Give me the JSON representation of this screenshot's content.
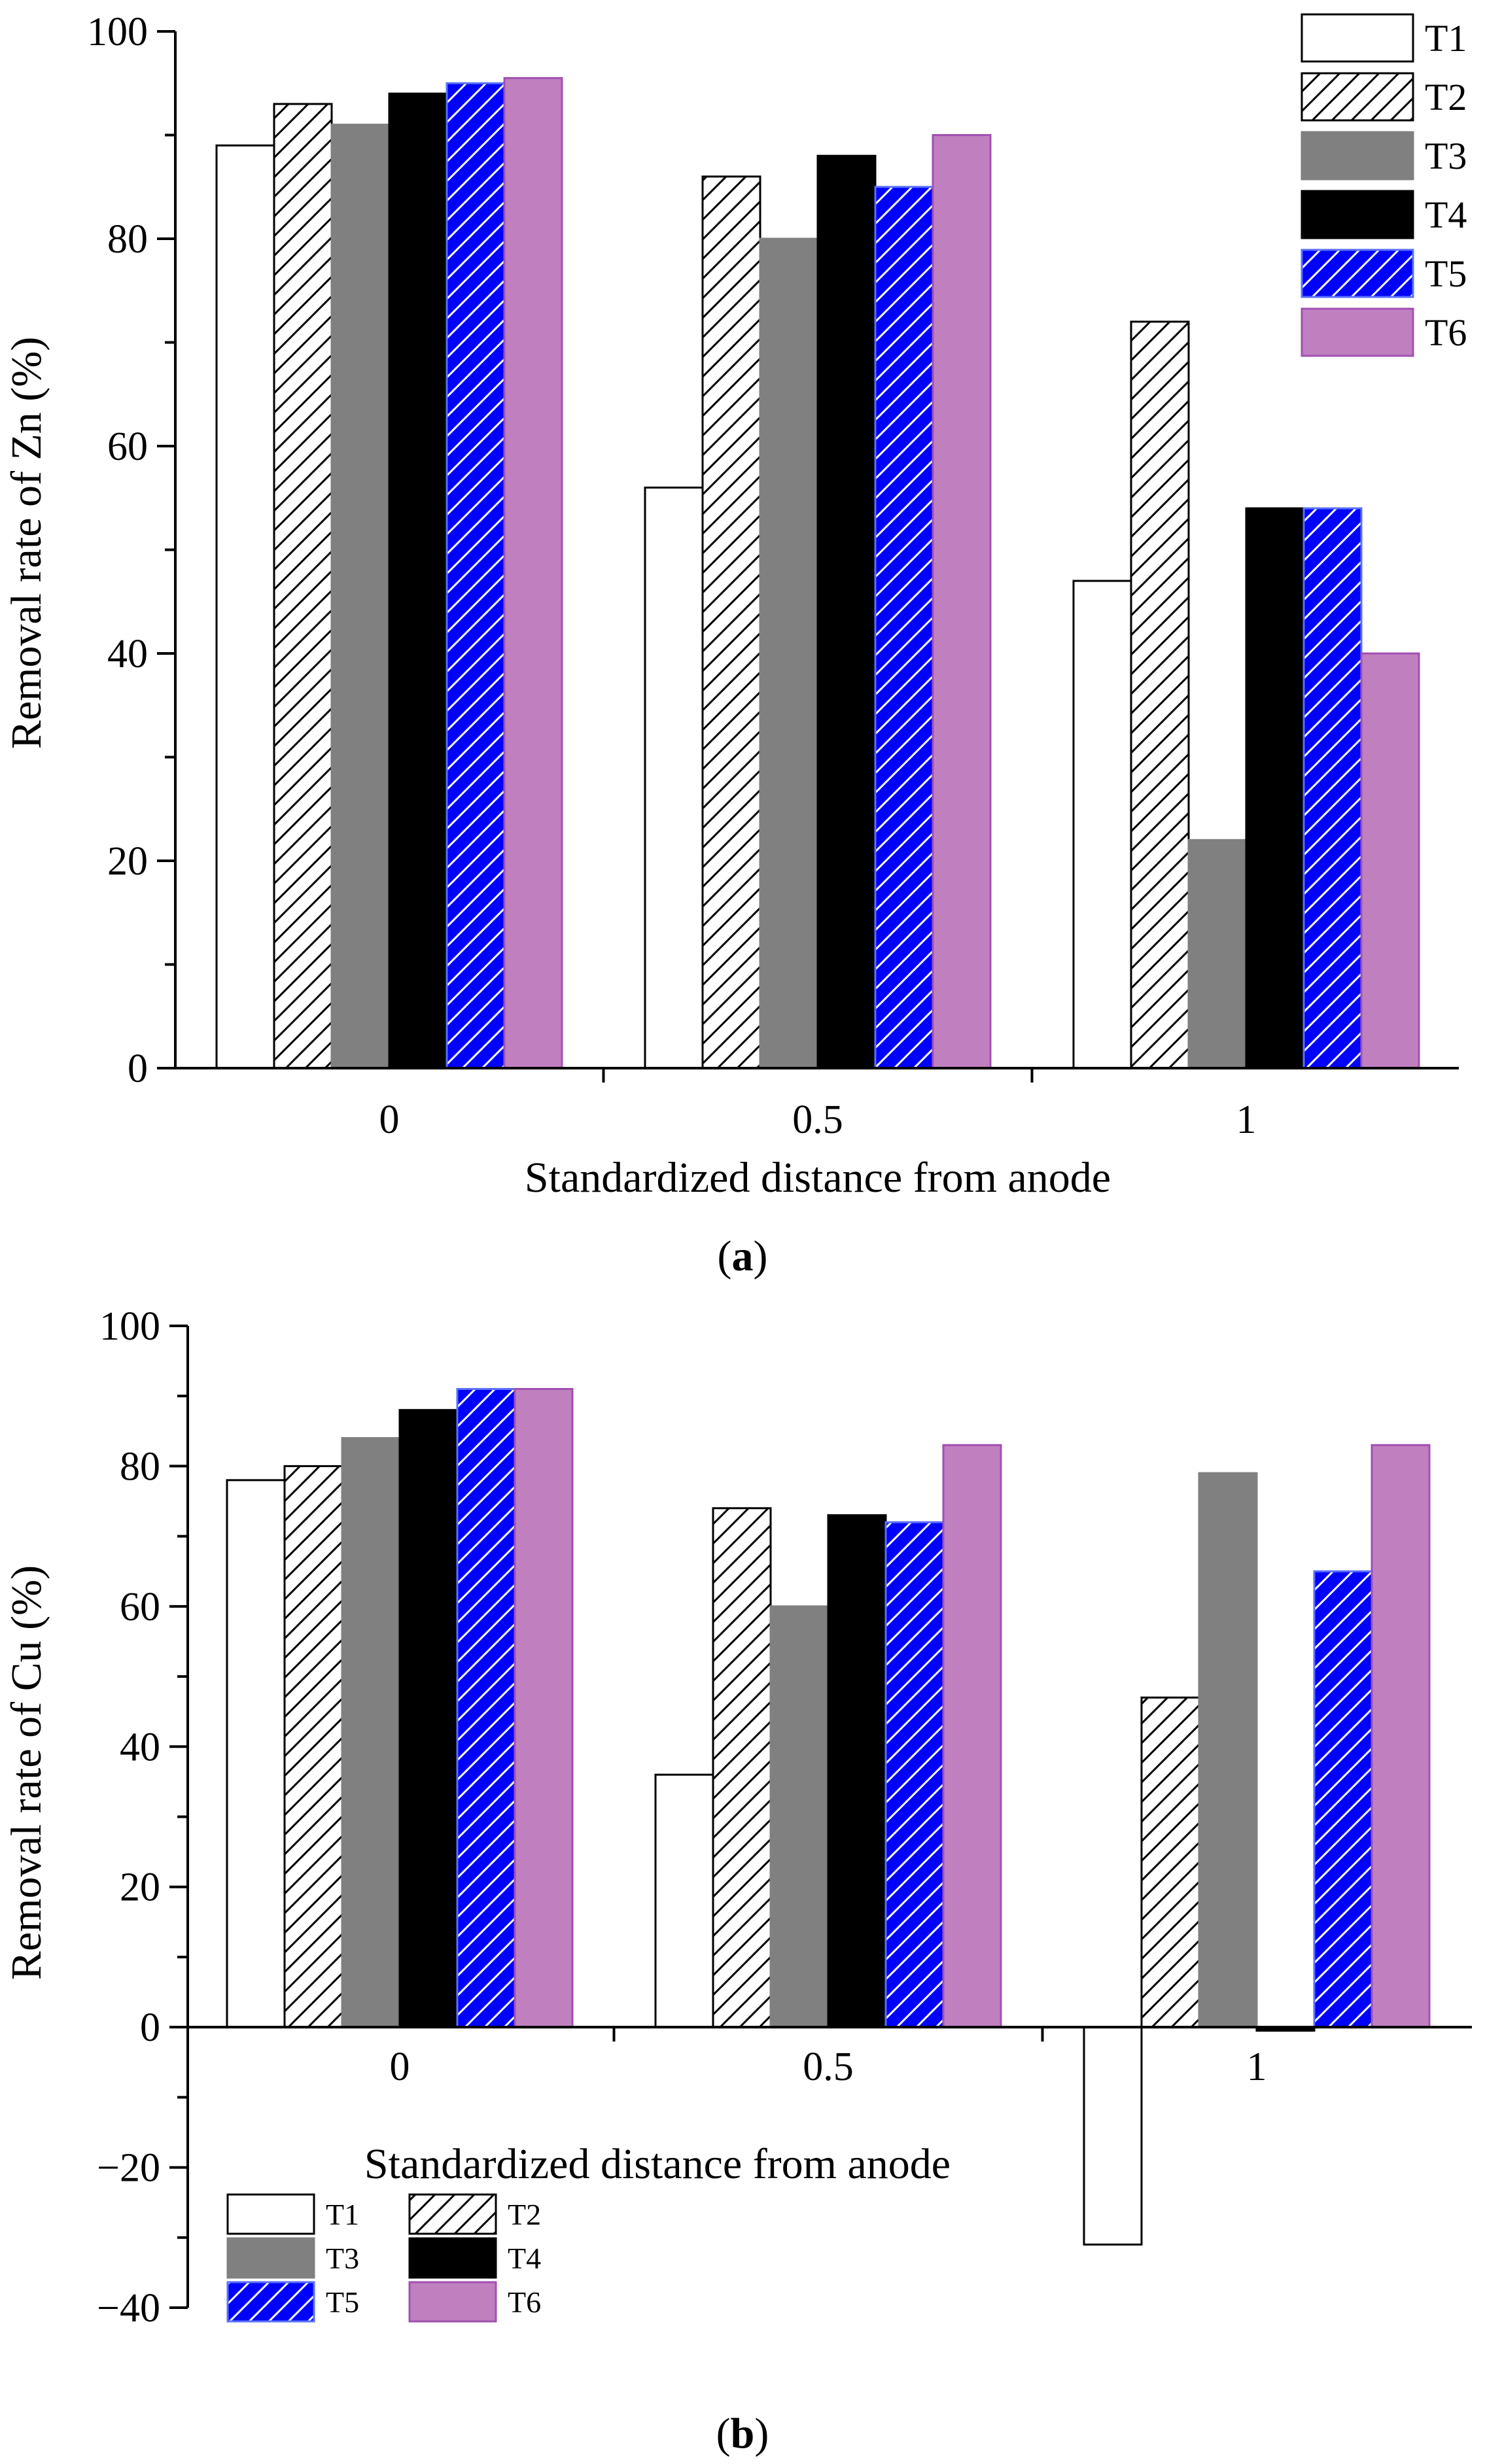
{
  "chart_data": [
    {
      "type": "bar",
      "categories": [
        "0",
        "0.5",
        "1"
      ],
      "series": [
        {
          "name": "T1",
          "values": [
            89,
            56,
            47
          ]
        },
        {
          "name": "T2",
          "values": [
            93,
            86,
            72
          ]
        },
        {
          "name": "T3",
          "values": [
            91,
            80,
            22
          ]
        },
        {
          "name": "T4",
          "values": [
            94,
            88,
            54
          ]
        },
        {
          "name": "T5",
          "values": [
            95,
            85,
            54
          ]
        },
        {
          "name": "T6",
          "values": [
            95.5,
            90,
            40
          ]
        }
      ],
      "title": "",
      "xlabel": "Standardized distance from anode",
      "ylabel": "Removal rate of Zn (%)",
      "ylim": [
        0,
        100
      ],
      "yticks": [
        0,
        20,
        40,
        60,
        80,
        100
      ],
      "ytick_labels": [
        "0",
        "20",
        "40",
        "60",
        "80",
        "100"
      ],
      "legend_position": "top-right",
      "panel_label": {
        "open": "(",
        "letter": "a",
        "close": ")"
      }
    },
    {
      "type": "bar",
      "categories": [
        "0",
        "0.5",
        "1"
      ],
      "series": [
        {
          "name": "T1",
          "values": [
            78,
            36,
            -31
          ]
        },
        {
          "name": "T2",
          "values": [
            80,
            74,
            47
          ]
        },
        {
          "name": "T3",
          "values": [
            84,
            60,
            79
          ]
        },
        {
          "name": "T4",
          "values": [
            88,
            73,
            -0.5
          ]
        },
        {
          "name": "T5",
          "values": [
            91,
            72,
            65
          ]
        },
        {
          "name": "T6",
          "values": [
            91,
            83,
            83
          ]
        }
      ],
      "title": "",
      "xlabel": "Standardized distance from anode",
      "ylabel": "Removal rate of Cu (%)",
      "ylim": [
        -40,
        100
      ],
      "yticks": [
        -40,
        -20,
        0,
        20,
        40,
        60,
        80,
        100
      ],
      "ytick_labels": [
        "−40",
        "−20",
        "0",
        "20",
        "40",
        "60",
        "80",
        "100"
      ],
      "legend_position": "bottom-left",
      "panel_label": {
        "open": "(",
        "letter": "b",
        "close": ")"
      }
    }
  ],
  "series_styles": {
    "T1": {
      "fill": "#ffffff",
      "stroke": "#000000",
      "hatch": false,
      "hatch_color": ""
    },
    "T2": {
      "fill": "#ffffff",
      "stroke": "#000000",
      "hatch": true,
      "hatch_color": "#000000"
    },
    "T3": {
      "fill": "#808080",
      "stroke": "#808080",
      "hatch": false,
      "hatch_color": ""
    },
    "T4": {
      "fill": "#000000",
      "stroke": "#000000",
      "hatch": false,
      "hatch_color": ""
    },
    "T5": {
      "fill": "#0000ff",
      "stroke": "#5a70ff",
      "hatch": true,
      "hatch_color": "#ffffff"
    },
    "T6": {
      "fill": "#c080c0",
      "stroke": "#a050b0",
      "hatch": false,
      "hatch_color": ""
    }
  }
}
